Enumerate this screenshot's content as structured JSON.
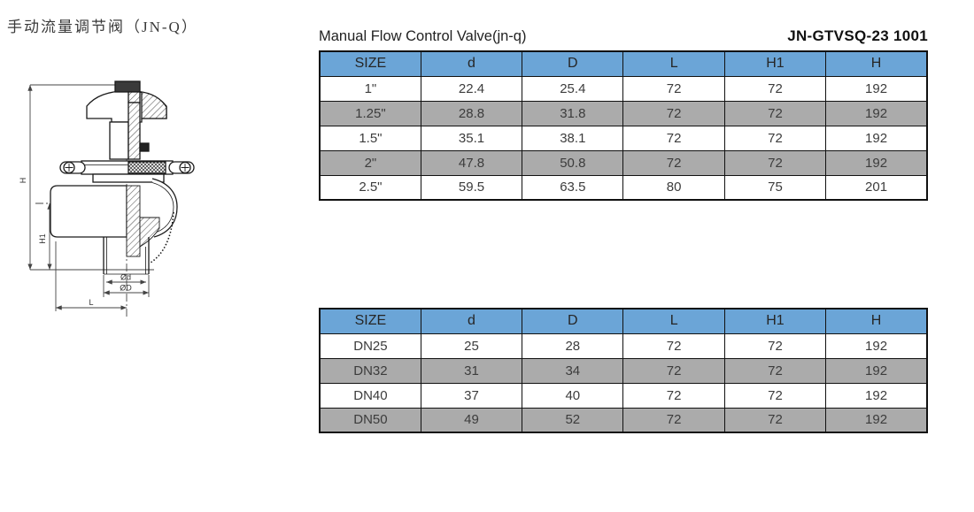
{
  "header": {
    "title_cn": "手动流量调节阀（JN-Q）",
    "title_en": "Manual Flow Control Valve(jn-q)",
    "model_code": "JN-GTVSQ-23 1001"
  },
  "drawing": {
    "dim_h": "H",
    "dim_h1": "H1",
    "dim_d_small": "Ød",
    "dim_d_large": "ØD",
    "dim_l": "L"
  },
  "colors": {
    "header_blue": "#6BA5D7",
    "row_gray": "#ABABAB",
    "border": "#111111",
    "text": "#3C3C3C"
  },
  "tables": [
    {
      "columns": [
        "SIZE",
        "d",
        "D",
        "L",
        "H1",
        "H"
      ],
      "rows": [
        [
          "1\"",
          "22.4",
          "25.4",
          "72",
          "72",
          "192"
        ],
        [
          "1.25\"",
          "28.8",
          "31.8",
          "72",
          "72",
          "192"
        ],
        [
          "1.5\"",
          "35.1",
          "38.1",
          "72",
          "72",
          "192"
        ],
        [
          "2\"",
          "47.8",
          "50.8",
          "72",
          "72",
          "192"
        ],
        [
          "2.5\"",
          "59.5",
          "63.5",
          "80",
          "75",
          "201"
        ]
      ]
    },
    {
      "columns": [
        "SIZE",
        "d",
        "D",
        "L",
        "H1",
        "H"
      ],
      "rows": [
        [
          "DN25",
          "25",
          "28",
          "72",
          "72",
          "192"
        ],
        [
          "DN32",
          "31",
          "34",
          "72",
          "72",
          "192"
        ],
        [
          "DN40",
          "37",
          "40",
          "72",
          "72",
          "192"
        ],
        [
          "DN50",
          "49",
          "52",
          "72",
          "72",
          "192"
        ]
      ]
    }
  ]
}
